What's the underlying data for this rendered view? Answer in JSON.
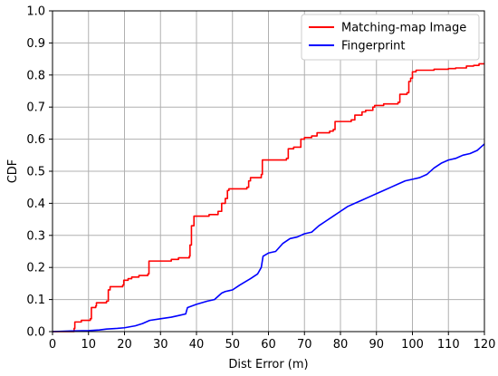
{
  "chart_data": {
    "type": "line",
    "title": "",
    "xlabel": "Dist Error (m)",
    "ylabel": "CDF",
    "xlim": [
      0,
      120
    ],
    "ylim": [
      0,
      1.0
    ],
    "xticks": [
      0,
      10,
      20,
      30,
      40,
      50,
      60,
      70,
      80,
      90,
      100,
      110,
      120
    ],
    "yticks": [
      0.0,
      0.1,
      0.2,
      0.3,
      0.4,
      0.5,
      0.6,
      0.7,
      0.8,
      0.9,
      1.0
    ],
    "ytick_labels": [
      "0.0",
      "0.1",
      "0.2",
      "0.3",
      "0.4",
      "0.5",
      "0.6",
      "0.7",
      "0.8",
      "0.9",
      "1.0"
    ],
    "grid": true,
    "legend_position": "top-right",
    "series": [
      {
        "name": "Matching-map Image",
        "color": "#ff0000",
        "step": true,
        "points": [
          [
            0,
            0
          ],
          [
            6,
            0
          ],
          [
            6,
            0.01
          ],
          [
            6.2,
            0.03
          ],
          [
            8,
            0.035
          ],
          [
            10.5,
            0.04
          ],
          [
            10.8,
            0.075
          ],
          [
            12,
            0.08
          ],
          [
            12.2,
            0.09
          ],
          [
            15,
            0.095
          ],
          [
            15.5,
            0.13
          ],
          [
            16,
            0.14
          ],
          [
            19.5,
            0.145
          ],
          [
            19.8,
            0.16
          ],
          [
            21,
            0.165
          ],
          [
            22,
            0.17
          ],
          [
            24,
            0.175
          ],
          [
            26.5,
            0.18
          ],
          [
            26.8,
            0.22
          ],
          [
            33,
            0.225
          ],
          [
            35,
            0.23
          ],
          [
            38,
            0.235
          ],
          [
            38.2,
            0.27
          ],
          [
            38.6,
            0.33
          ],
          [
            39.3,
            0.36
          ],
          [
            43.5,
            0.365
          ],
          [
            46,
            0.375
          ],
          [
            47,
            0.4
          ],
          [
            48,
            0.415
          ],
          [
            48.6,
            0.44
          ],
          [
            49,
            0.445
          ],
          [
            54,
            0.45
          ],
          [
            54.5,
            0.47
          ],
          [
            55,
            0.48
          ],
          [
            58,
            0.49
          ],
          [
            58.3,
            0.535
          ],
          [
            65,
            0.54
          ],
          [
            65.5,
            0.57
          ],
          [
            67,
            0.575
          ],
          [
            69,
            0.6
          ],
          [
            70,
            0.605
          ],
          [
            72,
            0.61
          ],
          [
            73.5,
            0.62
          ],
          [
            77,
            0.625
          ],
          [
            78,
            0.63
          ],
          [
            78.5,
            0.655
          ],
          [
            83,
            0.66
          ],
          [
            84,
            0.675
          ],
          [
            86,
            0.685
          ],
          [
            87,
            0.69
          ],
          [
            89,
            0.7
          ],
          [
            89.5,
            0.705
          ],
          [
            92,
            0.71
          ],
          [
            96,
            0.715
          ],
          [
            96.5,
            0.74
          ],
          [
            98.5,
            0.745
          ],
          [
            99,
            0.78
          ],
          [
            99.5,
            0.79
          ],
          [
            100,
            0.81
          ],
          [
            101,
            0.815
          ],
          [
            104,
            0.815
          ],
          [
            106,
            0.818
          ],
          [
            110,
            0.82
          ],
          [
            112,
            0.822
          ],
          [
            115,
            0.828
          ],
          [
            117,
            0.83
          ],
          [
            118.5,
            0.835
          ],
          [
            120,
            0.835
          ]
        ]
      },
      {
        "name": "Fingerprint",
        "color": "#0000ff",
        "step": false,
        "points": [
          [
            0,
            0
          ],
          [
            5,
            0.002
          ],
          [
            10,
            0.003
          ],
          [
            13,
            0.005
          ],
          [
            15,
            0.008
          ],
          [
            18,
            0.01
          ],
          [
            20,
            0.012
          ],
          [
            23,
            0.018
          ],
          [
            25,
            0.025
          ],
          [
            27,
            0.035
          ],
          [
            30,
            0.04
          ],
          [
            33,
            0.045
          ],
          [
            35,
            0.05
          ],
          [
            37,
            0.055
          ],
          [
            37.5,
            0.075
          ],
          [
            40,
            0.085
          ],
          [
            43,
            0.095
          ],
          [
            45,
            0.1
          ],
          [
            47,
            0.12
          ],
          [
            48,
            0.125
          ],
          [
            50,
            0.13
          ],
          [
            52,
            0.145
          ],
          [
            55,
            0.165
          ],
          [
            57,
            0.18
          ],
          [
            58,
            0.2
          ],
          [
            58.5,
            0.235
          ],
          [
            60,
            0.245
          ],
          [
            62,
            0.25
          ],
          [
            64,
            0.275
          ],
          [
            66,
            0.29
          ],
          [
            68,
            0.295
          ],
          [
            70,
            0.305
          ],
          [
            72,
            0.31
          ],
          [
            74,
            0.33
          ],
          [
            76,
            0.345
          ],
          [
            78,
            0.36
          ],
          [
            80,
            0.375
          ],
          [
            82,
            0.39
          ],
          [
            84,
            0.4
          ],
          [
            86,
            0.41
          ],
          [
            88,
            0.42
          ],
          [
            90,
            0.43
          ],
          [
            92,
            0.44
          ],
          [
            94,
            0.45
          ],
          [
            96,
            0.46
          ],
          [
            98,
            0.47
          ],
          [
            100,
            0.475
          ],
          [
            102,
            0.48
          ],
          [
            104,
            0.49
          ],
          [
            106,
            0.51
          ],
          [
            108,
            0.525
          ],
          [
            110,
            0.535
          ],
          [
            112,
            0.54
          ],
          [
            114,
            0.55
          ],
          [
            116,
            0.555
          ],
          [
            118,
            0.565
          ],
          [
            119,
            0.575
          ],
          [
            120,
            0.585
          ]
        ]
      }
    ]
  }
}
